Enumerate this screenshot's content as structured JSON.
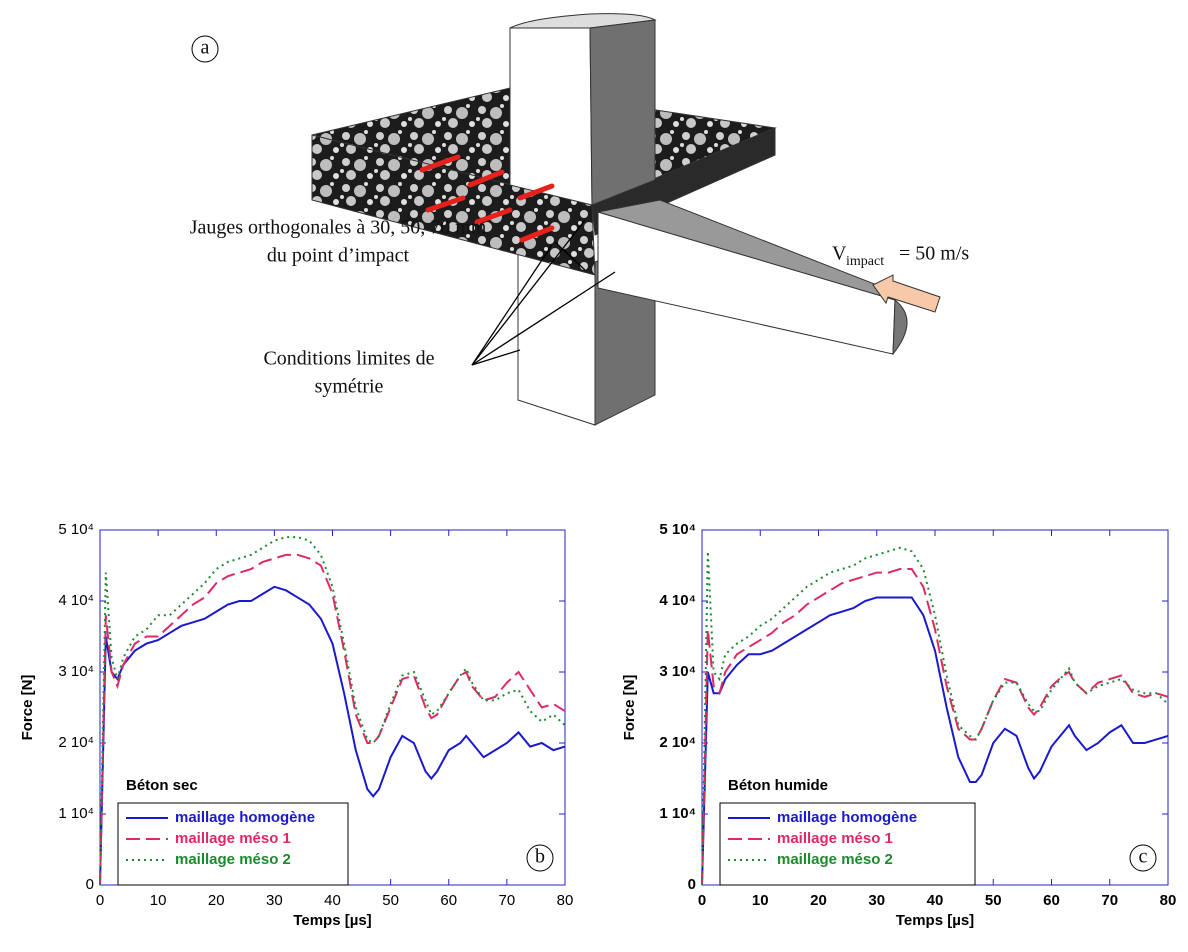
{
  "diagram": {
    "panel_label": "a",
    "gauge_label_1": "Jauges orthogonales à 30, 50, 70 mm",
    "gauge_label_2": "du point d’impact",
    "velocity_symbol": "V",
    "velocity_subscript": "impact",
    "velocity_value": "= 50 m/s",
    "boundary_label_1": "Conditions limites de",
    "boundary_label_2": "symétrie"
  },
  "chart_data": [
    {
      "type": "line",
      "title": "Béton sec",
      "panel_label": "b",
      "x_label": "Temps [µs]",
      "y_label": "Force [N]",
      "xlim": [
        0,
        80
      ],
      "xticks": [
        0,
        10,
        20,
        30,
        40,
        50,
        60,
        70,
        80
      ],
      "ylim": [
        0,
        50000
      ],
      "yticks": [
        0,
        {
          "value": 10000,
          "label": "1 10⁴"
        },
        {
          "value": 20000,
          "label": "2 10⁴"
        },
        {
          "value": 30000,
          "label": "3 10⁴"
        },
        {
          "value": 40000,
          "label": "4 10⁴"
        },
        {
          "value": 50000,
          "label": "5 10⁴"
        }
      ],
      "legend": "lower left",
      "bold_ticks": false,
      "x": [
        0,
        1,
        2,
        3,
        4,
        6,
        8,
        10,
        12,
        14,
        16,
        18,
        20,
        22,
        24,
        26,
        28,
        30,
        32,
        34,
        36,
        38,
        40,
        42,
        44,
        46,
        47,
        48,
        50,
        52,
        54,
        56,
        57,
        58,
        60,
        62,
        63,
        64,
        66,
        68,
        70,
        72,
        74,
        76,
        78,
        80
      ],
      "series": [
        {
          "name": "maillage homogène",
          "color": "#1a1acc",
          "dash": "solid",
          "values": [
            0,
            35000,
            30000,
            29000,
            31000,
            33000,
            34000,
            34500,
            35500,
            36500,
            37000,
            37500,
            38500,
            39500,
            40000,
            40000,
            41000,
            42000,
            41500,
            40500,
            39500,
            37500,
            34000,
            27000,
            19000,
            13500,
            12500,
            13500,
            18000,
            21000,
            20000,
            16000,
            15000,
            16000,
            19000,
            20000,
            21000,
            20000,
            18000,
            19000,
            20000,
            21500,
            19500,
            20000,
            19000,
            19500
          ]
        },
        {
          "name": "maillage méso 1",
          "color": "#dd2a66",
          "dash": "dashed",
          "values": [
            0,
            38000,
            30000,
            28000,
            31000,
            34000,
            35000,
            35000,
            36500,
            38000,
            39500,
            40500,
            42500,
            43500,
            44000,
            44500,
            45500,
            46000,
            46500,
            46500,
            46000,
            45000,
            41000,
            33000,
            24000,
            20000,
            20000,
            21000,
            25000,
            29000,
            29500,
            25000,
            23500,
            24000,
            27000,
            29500,
            30000,
            28000,
            26000,
            26500,
            28500,
            30000,
            27500,
            25000,
            25500,
            24500
          ]
        },
        {
          "name": "maillage méso 2",
          "color": "#1e8a2e",
          "dash": "dotted",
          "values": [
            0,
            44000,
            32000,
            29000,
            32000,
            35000,
            36000,
            38000,
            38000,
            39500,
            41000,
            42500,
            44500,
            45500,
            46000,
            46500,
            47500,
            48500,
            49000,
            49000,
            48500,
            46500,
            42000,
            34000,
            25000,
            20500,
            20000,
            21000,
            25500,
            29500,
            30000,
            26000,
            24000,
            24500,
            27000,
            29500,
            30500,
            28500,
            26000,
            26000,
            27000,
            27500,
            24500,
            23000,
            24000,
            22500
          ]
        }
      ]
    },
    {
      "type": "line",
      "title": "Béton humide",
      "panel_label": "c",
      "x_label": "Temps [µs]",
      "y_label": "Force [N]",
      "xlim": [
        0,
        80
      ],
      "xticks": [
        0,
        10,
        20,
        30,
        40,
        50,
        60,
        70,
        80
      ],
      "ylim": [
        0,
        50000
      ],
      "yticks": [
        0,
        {
          "value": 10000,
          "label": "1 10⁴"
        },
        {
          "value": 20000,
          "label": "2 10⁴"
        },
        {
          "value": 30000,
          "label": "3 10⁴"
        },
        {
          "value": 40000,
          "label": "4 10⁴"
        },
        {
          "value": 50000,
          "label": "5 10⁴"
        }
      ],
      "legend": "lower left",
      "bold_ticks": true,
      "x": [
        0,
        1,
        2,
        3,
        4,
        6,
        8,
        10,
        12,
        14,
        16,
        18,
        20,
        22,
        24,
        26,
        28,
        30,
        32,
        34,
        36,
        38,
        40,
        42,
        44,
        46,
        47,
        48,
        50,
        52,
        54,
        56,
        57,
        58,
        60,
        62,
        63,
        64,
        66,
        68,
        70,
        72,
        74,
        76,
        78,
        80
      ],
      "series": [
        {
          "name": "maillage homogène",
          "color": "#1a1acc",
          "dash": "solid",
          "values": [
            0,
            30000,
            27000,
            27000,
            29000,
            31000,
            32500,
            32500,
            33000,
            34000,
            35000,
            36000,
            37000,
            38000,
            38500,
            39000,
            40000,
            40500,
            40500,
            40500,
            40500,
            38000,
            33000,
            25000,
            18000,
            14500,
            14500,
            15500,
            20000,
            22000,
            21000,
            16500,
            15000,
            16000,
            19500,
            21500,
            22500,
            21000,
            19000,
            20000,
            21500,
            22500,
            20000,
            20000,
            20500,
            21000
          ]
        },
        {
          "name": "maillage méso 1",
          "color": "#dd2a66",
          "dash": "dashed",
          "values": [
            0,
            36000,
            28000,
            27000,
            30000,
            32500,
            33500,
            34500,
            35500,
            37000,
            38000,
            39500,
            40500,
            41500,
            42500,
            43000,
            43500,
            44000,
            44000,
            44500,
            44500,
            42000,
            36000,
            28000,
            22000,
            20500,
            20500,
            22000,
            26000,
            29000,
            28500,
            25000,
            24000,
            25000,
            28000,
            29500,
            30000,
            28500,
            27000,
            28500,
            29000,
            29500,
            27000,
            26500,
            27000,
            26500
          ]
        },
        {
          "name": "maillage méso 2",
          "color": "#1e8a2e",
          "dash": "dotted",
          "values": [
            0,
            47000,
            30000,
            29000,
            32500,
            34000,
            35000,
            36500,
            37500,
            39000,
            40500,
            42000,
            43000,
            44000,
            44500,
            45000,
            46000,
            46500,
            47000,
            47500,
            47000,
            44500,
            38000,
            29500,
            22500,
            21000,
            20500,
            22000,
            26000,
            28500,
            28500,
            25500,
            24500,
            24500,
            27500,
            29500,
            30500,
            28500,
            27000,
            28000,
            28500,
            29000,
            27500,
            27000,
            27000,
            25500
          ]
        }
      ]
    }
  ]
}
